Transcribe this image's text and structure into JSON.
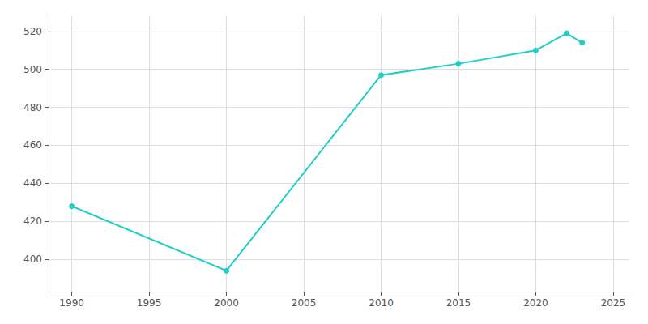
{
  "chart_data": {
    "type": "line",
    "x": [
      1990,
      2000,
      2010,
      2015,
      2020,
      2022,
      2023
    ],
    "values": [
      428,
      394,
      497,
      503,
      510,
      519,
      514
    ],
    "color": "#22CEC8",
    "marker": "circle",
    "xlim": [
      1988.5,
      2026
    ],
    "ylim": [
      383,
      528
    ],
    "xticks": [
      1990,
      1995,
      2000,
      2005,
      2010,
      2015,
      2020,
      2025
    ],
    "yticks": [
      400,
      420,
      440,
      460,
      480,
      500,
      520
    ],
    "grid": true
  }
}
